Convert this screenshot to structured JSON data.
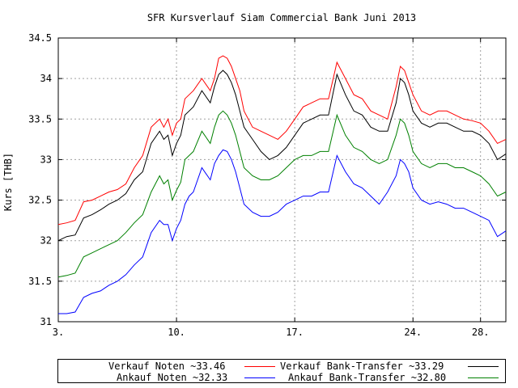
{
  "chart_data": {
    "type": "line",
    "title": "SFR Kursverlauf Siam Commercial Bank Juni 2013",
    "xlabel": "",
    "ylabel": "Kurs [THB]",
    "xlim": [
      3,
      29.5
    ],
    "ylim": [
      31,
      34.5
    ],
    "x_ticks": [
      3,
      10,
      17,
      24,
      28
    ],
    "x_tick_labels": [
      "3.",
      "10.",
      "17.",
      "24.",
      "28."
    ],
    "y_ticks": [
      31,
      31.5,
      32,
      32.5,
      33,
      33.5,
      34,
      34.5
    ],
    "y_tick_labels": [
      "31",
      "31.5",
      "32",
      "32.5",
      "33",
      "33.5",
      "34",
      "34.5"
    ],
    "grid": true,
    "legend_position": "bottom",
    "x": [
      3.0,
      3.5,
      4.0,
      4.5,
      5.0,
      5.5,
      6.0,
      6.5,
      7.0,
      7.5,
      8.0,
      8.5,
      9.0,
      9.25,
      9.5,
      9.75,
      10.0,
      10.25,
      10.5,
      10.75,
      11.0,
      11.5,
      12.0,
      12.25,
      12.5,
      12.75,
      13.0,
      13.25,
      13.5,
      13.75,
      14.0,
      14.5,
      15.0,
      15.5,
      16.0,
      16.5,
      17.0,
      17.5,
      18.0,
      18.5,
      19.0,
      19.5,
      20.0,
      20.5,
      21.0,
      21.5,
      22.0,
      22.5,
      23.0,
      23.25,
      23.5,
      23.75,
      24.0,
      24.5,
      25.0,
      25.5,
      26.0,
      26.5,
      27.0,
      27.5,
      28.0,
      28.5,
      29.0,
      29.5
    ],
    "series": [
      {
        "name": "Verkauf Noten ~33.46",
        "color": "#ff0000",
        "values": [
          32.2,
          32.22,
          32.25,
          32.48,
          32.5,
          32.55,
          32.6,
          32.63,
          32.7,
          32.9,
          33.05,
          33.4,
          33.5,
          33.4,
          33.5,
          33.3,
          33.45,
          33.5,
          33.75,
          33.8,
          33.85,
          34.0,
          33.85,
          34.0,
          34.25,
          34.28,
          34.25,
          34.15,
          34.0,
          33.85,
          33.6,
          33.4,
          33.35,
          33.3,
          33.25,
          33.35,
          33.5,
          33.65,
          33.7,
          33.75,
          33.75,
          34.2,
          34.0,
          33.8,
          33.75,
          33.6,
          33.55,
          33.5,
          33.9,
          34.15,
          34.1,
          33.95,
          33.8,
          33.6,
          33.55,
          33.6,
          33.6,
          33.55,
          33.5,
          33.48,
          33.45,
          33.35,
          33.2,
          33.25
        ]
      },
      {
        "name": "Verkauf Bank-Transfer ~33.29",
        "color": "#000000",
        "values": [
          32.0,
          32.05,
          32.07,
          32.28,
          32.32,
          32.38,
          32.45,
          32.5,
          32.58,
          32.75,
          32.85,
          33.2,
          33.35,
          33.25,
          33.3,
          33.05,
          33.2,
          33.3,
          33.55,
          33.6,
          33.65,
          33.85,
          33.7,
          33.9,
          34.05,
          34.1,
          34.05,
          33.95,
          33.8,
          33.6,
          33.4,
          33.25,
          33.1,
          33.0,
          33.05,
          33.15,
          33.3,
          33.45,
          33.5,
          33.55,
          33.55,
          34.05,
          33.8,
          33.6,
          33.55,
          33.4,
          33.35,
          33.35,
          33.7,
          34.0,
          33.95,
          33.8,
          33.6,
          33.45,
          33.4,
          33.45,
          33.45,
          33.4,
          33.35,
          33.35,
          33.3,
          33.2,
          33.0,
          33.07
        ]
      },
      {
        "name": "Ankauf Noten ~32.33",
        "color": "#0000ff",
        "values": [
          31.1,
          31.1,
          31.12,
          31.3,
          31.35,
          31.38,
          31.45,
          31.5,
          31.58,
          31.7,
          31.8,
          32.1,
          32.25,
          32.2,
          32.2,
          32.0,
          32.15,
          32.25,
          32.45,
          32.55,
          32.6,
          32.9,
          32.75,
          32.95,
          33.05,
          33.12,
          33.1,
          33.0,
          32.85,
          32.65,
          32.45,
          32.35,
          32.3,
          32.3,
          32.35,
          32.45,
          32.5,
          32.55,
          32.55,
          32.6,
          32.6,
          33.05,
          32.85,
          32.7,
          32.65,
          32.55,
          32.45,
          32.6,
          32.8,
          33.0,
          32.95,
          32.85,
          32.65,
          32.5,
          32.45,
          32.48,
          32.45,
          32.4,
          32.4,
          32.35,
          32.3,
          32.25,
          32.05,
          32.12
        ]
      },
      {
        "name": "Ankauf Bank-Transfer ~32.80",
        "color": "#008000",
        "values": [
          31.55,
          31.57,
          31.6,
          31.8,
          31.85,
          31.9,
          31.95,
          32.0,
          32.1,
          32.22,
          32.32,
          32.6,
          32.8,
          32.7,
          32.75,
          32.5,
          32.62,
          32.72,
          33.0,
          33.05,
          33.1,
          33.35,
          33.2,
          33.4,
          33.55,
          33.6,
          33.55,
          33.45,
          33.3,
          33.1,
          32.9,
          32.8,
          32.75,
          32.75,
          32.8,
          32.9,
          33.0,
          33.05,
          33.05,
          33.1,
          33.1,
          33.55,
          33.3,
          33.15,
          33.1,
          33.0,
          32.95,
          33.0,
          33.3,
          33.5,
          33.45,
          33.3,
          33.1,
          32.95,
          32.9,
          32.95,
          32.95,
          32.9,
          32.9,
          32.85,
          32.8,
          32.7,
          32.55,
          32.6
        ]
      }
    ]
  }
}
